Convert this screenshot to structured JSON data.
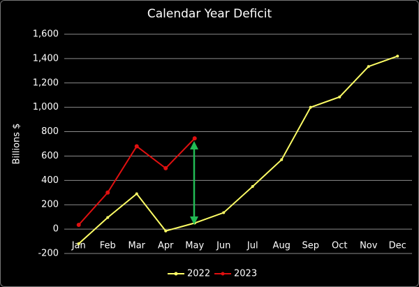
{
  "chart_data": {
    "type": "line",
    "title": "Calendar Year Deficit",
    "y_label": "Billions $",
    "categories": [
      "Jan",
      "Feb",
      "Mar",
      "Apr",
      "May",
      "Jun",
      "Jul",
      "Aug",
      "Sep",
      "Oct",
      "Nov",
      "Dec"
    ],
    "series": [
      {
        "name": "2022",
        "color": "#ffff66",
        "values": [
          -120,
          95,
          290,
          -15,
          50,
          135,
          350,
          570,
          1000,
          1085,
          1335,
          1420
        ]
      },
      {
        "name": "2023",
        "color": "#e01010",
        "values": [
          35,
          300,
          680,
          500,
          745,
          null,
          null,
          null,
          null,
          null,
          null,
          null
        ]
      }
    ],
    "ylim": [
      -200,
      1600
    ],
    "yticks": [
      -200,
      0,
      200,
      400,
      600,
      800,
      {
        "value": 1000,
        "label": "1,000"
      },
      {
        "value": 1200,
        "label": "1,200"
      },
      {
        "value": 1400,
        "label": "1,400"
      },
      {
        "value": 1600,
        "label": "1,600"
      }
    ],
    "grid": true,
    "legend": "bottom"
  }
}
